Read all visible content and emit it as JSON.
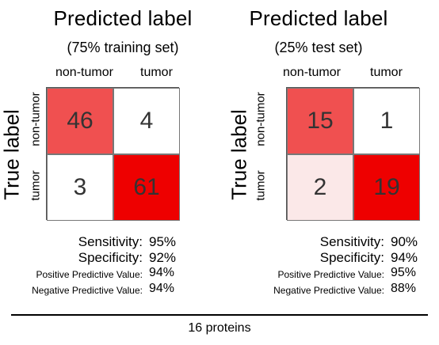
{
  "colors": {
    "high": "#ee0000",
    "mid": "#f05050",
    "low": "#fbe8e8",
    "zero": "#ffffff"
  },
  "chart_data": [
    {
      "type": "heatmap",
      "title": "Predicted label",
      "subtitle": "(75% training set)",
      "xlabel": "Predicted label",
      "ylabel": "True label",
      "col_labels": [
        "non-tumor",
        "tumor"
      ],
      "row_labels": [
        "non-tumor",
        "tumor"
      ],
      "values": [
        [
          46,
          4
        ],
        [
          3,
          61
        ]
      ],
      "metrics": [
        {
          "name": "Sensitivity:",
          "value": "95%"
        },
        {
          "name": "Specificity:",
          "value": "92%"
        },
        {
          "name": "Positive Predictive Value:",
          "value": "94%"
        },
        {
          "name": "Negative Predictive Value:",
          "value": "94%"
        }
      ]
    },
    {
      "type": "heatmap",
      "title": "Predicted label",
      "subtitle": "(25% test set)",
      "xlabel": "Predicted label",
      "ylabel": "True label",
      "col_labels": [
        "non-tumor",
        "tumor"
      ],
      "row_labels": [
        "non-tumor",
        "tumor"
      ],
      "values": [
        [
          15,
          1
        ],
        [
          2,
          19
        ]
      ],
      "metrics": [
        {
          "name": "Sensitivity:",
          "value": "90%"
        },
        {
          "name": "Specificity:",
          "value": "94%"
        },
        {
          "name": "Positive Predictive Value:",
          "value": "95%"
        },
        {
          "name": "Negative Predictive Value:",
          "value": "88%"
        }
      ]
    }
  ],
  "footer": "16 proteins"
}
